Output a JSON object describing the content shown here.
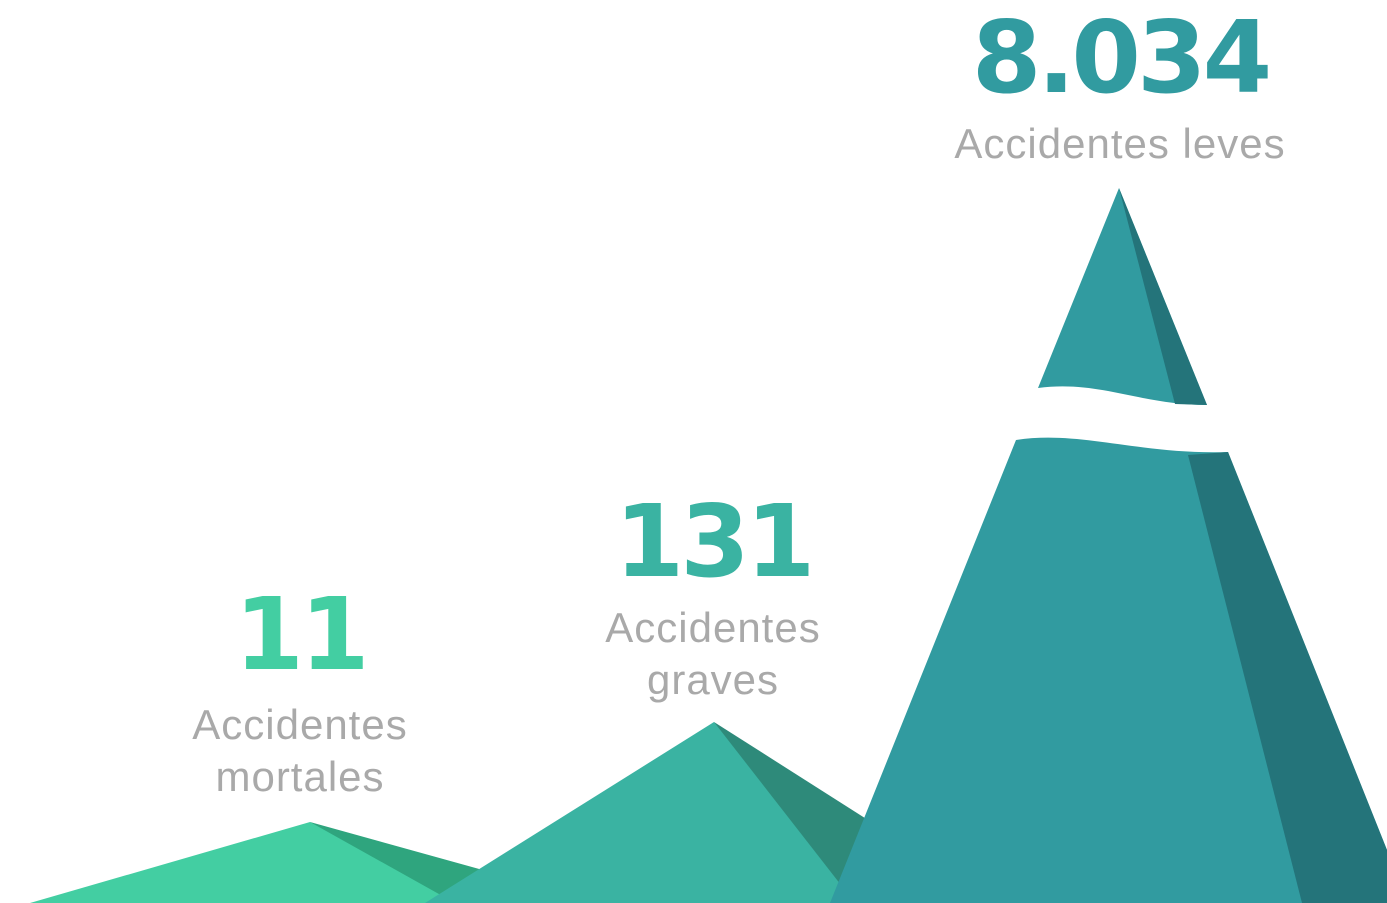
{
  "items": [
    {
      "value": "11",
      "label": "Accidentes mortales"
    },
    {
      "value": "131",
      "label": "Accidentes graves"
    },
    {
      "value": "8.034",
      "label": "Accidentes leves"
    }
  ]
}
